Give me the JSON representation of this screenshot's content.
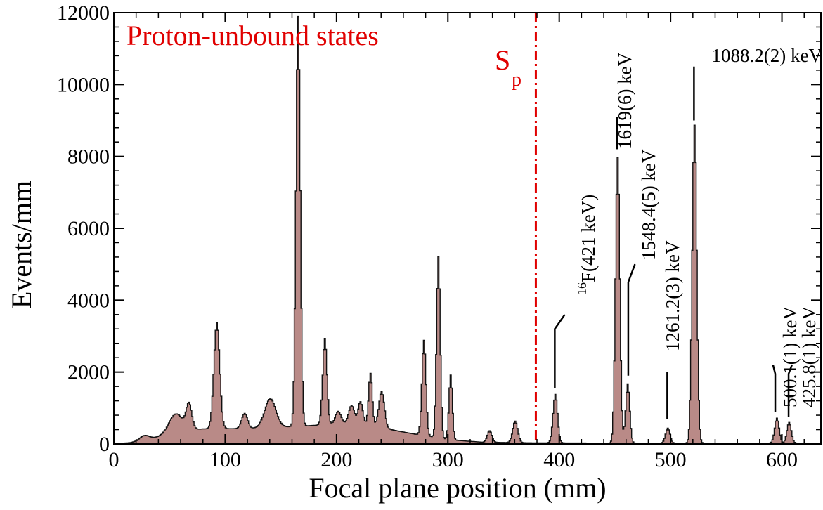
{
  "chart_data": {
    "type": "area",
    "xlabel": "Focal plane position (mm)",
    "ylabel": "Events/mm",
    "xlim": [
      0,
      635
    ],
    "ylim": [
      0,
      12000
    ],
    "xticks": [
      0,
      100,
      200,
      300,
      400,
      500,
      600
    ],
    "yticks": [
      0,
      2000,
      4000,
      6000,
      8000,
      10000,
      12000
    ],
    "grid": false,
    "fill_color": "#b98a87",
    "line_color": "#111111",
    "series": [
      {
        "peaks": [
          {
            "x": 27,
            "h": 120,
            "w": 4
          },
          {
            "x": 55,
            "h": 500,
            "w": 6
          },
          {
            "x": 67,
            "h": 700,
            "w": 2.5
          },
          {
            "x": 92,
            "h": 2950,
            "w": 2.6
          },
          {
            "x": 117,
            "h": 420,
            "w": 2.6
          },
          {
            "x": 140,
            "h": 800,
            "w": 5
          },
          {
            "x": 165,
            "h": 11400,
            "w": 1.9
          },
          {
            "x": 189,
            "h": 2400,
            "w": 1.9
          },
          {
            "x": 201,
            "h": 350,
            "w": 2.5
          },
          {
            "x": 213,
            "h": 500,
            "w": 2.5
          },
          {
            "x": 221,
            "h": 600,
            "w": 2
          },
          {
            "x": 230,
            "h": 1450,
            "w": 1.6
          },
          {
            "x": 240,
            "h": 1000,
            "w": 2.5
          },
          {
            "x": 278,
            "h": 2650,
            "w": 1.8
          },
          {
            "x": 291,
            "h": 5050,
            "w": 1.6
          },
          {
            "x": 302,
            "h": 1800,
            "w": 1.5
          },
          {
            "x": 337,
            "h": 320,
            "w": 2
          },
          {
            "x": 360,
            "h": 600,
            "w": 2.2
          },
          {
            "x": 396,
            "h": 1350,
            "w": 2
          },
          {
            "x": 452,
            "h": 7950,
            "w": 1.9
          },
          {
            "x": 461,
            "h": 1650,
            "w": 1.8
          },
          {
            "x": 497,
            "h": 420,
            "w": 2
          },
          {
            "x": 521,
            "h": 8850,
            "w": 2
          },
          {
            "x": 595,
            "h": 700,
            "w": 2
          },
          {
            "x": 606,
            "h": 580,
            "w": 2
          }
        ],
        "background": [
          {
            "x": 0,
            "y": 0
          },
          {
            "x": 15,
            "y": 40
          },
          {
            "x": 40,
            "y": 200
          },
          {
            "x": 60,
            "y": 380
          },
          {
            "x": 80,
            "y": 420
          },
          {
            "x": 120,
            "y": 430
          },
          {
            "x": 160,
            "y": 480
          },
          {
            "x": 200,
            "y": 560
          },
          {
            "x": 220,
            "y": 580
          },
          {
            "x": 245,
            "y": 420
          },
          {
            "x": 265,
            "y": 300
          },
          {
            "x": 300,
            "y": 120
          },
          {
            "x": 330,
            "y": 50
          },
          {
            "x": 380,
            "y": 30
          },
          {
            "x": 500,
            "y": 20
          },
          {
            "x": 635,
            "y": 20
          }
        ]
      }
    ],
    "sp_line": {
      "x": 379,
      "label_main": "S",
      "label_sub": "p",
      "color": "#e00000"
    },
    "region_label": "Proton-unbound states",
    "annotations": [
      {
        "sup": "16",
        "text": "F(421 keV)",
        "x": 396,
        "color": "#1010e0"
      },
      {
        "text": "1619(6) keV",
        "x": 452
      },
      {
        "text": "1548.4(5) keV",
        "x": 462
      },
      {
        "text": "1261.2(3) keV",
        "x": 495
      },
      {
        "text": "1088.2(2) keV",
        "x": 521
      },
      {
        "text": "500.1(1) keV",
        "x": 594
      },
      {
        "text": "425.8(1) keV",
        "x": 606
      }
    ]
  }
}
